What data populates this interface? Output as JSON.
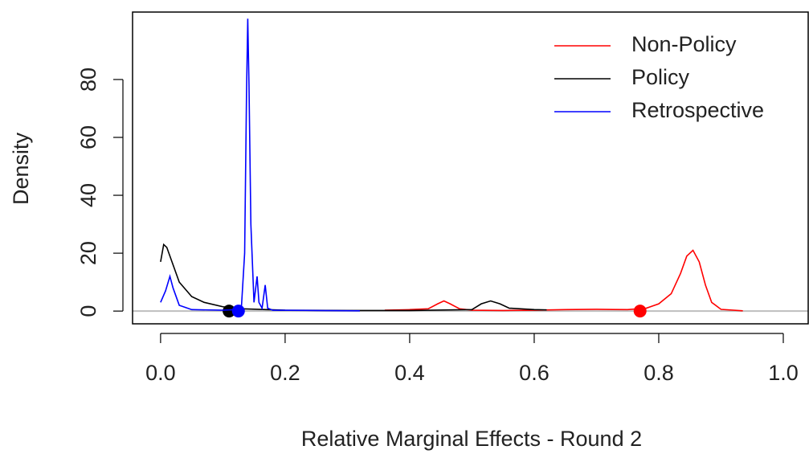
{
  "chart_data": {
    "type": "line",
    "x_label": "Relative Marginal Effects - Round 2",
    "y_label": "Density",
    "xlim": [
      -0.045,
      1.04
    ],
    "ylim": [
      -4.4,
      103.3
    ],
    "xticks": [
      {
        "value": 0,
        "label": "0.0"
      },
      0.2,
      0.4,
      0.6,
      0.8,
      {
        "value": 1,
        "label": "1.0"
      }
    ],
    "yticks": [
      0,
      20,
      40,
      60,
      80
    ],
    "legend_position": "topright",
    "series": [
      {
        "name": "Non-Policy",
        "color": "#ff0000",
        "marker_x": 0.77,
        "x": [
          0.36,
          0.4,
          0.43,
          0.445,
          0.455,
          0.465,
          0.48,
          0.5,
          0.55,
          0.6,
          0.65,
          0.7,
          0.75,
          0.78,
          0.8,
          0.82,
          0.835,
          0.845,
          0.855,
          0.865,
          0.875,
          0.885,
          0.9,
          0.935
        ],
        "values": [
          0.3,
          0.5,
          0.8,
          2.5,
          3.5,
          2.5,
          0.8,
          0.3,
          0.2,
          0.3,
          0.5,
          0.6,
          0.5,
          1,
          2.5,
          6,
          13,
          19,
          21,
          17,
          9,
          3,
          0.6,
          0.1
        ]
      },
      {
        "name": "Policy",
        "color": "#000000",
        "marker_x": 0.11,
        "x": [
          0,
          0.005,
          0.01,
          0.02,
          0.03,
          0.05,
          0.07,
          0.1,
          0.13,
          0.2,
          0.3,
          0.4,
          0.5,
          0.515,
          0.53,
          0.545,
          0.56,
          0.6,
          0.62
        ],
        "values": [
          17,
          23,
          22,
          16,
          10,
          5,
          3,
          1.5,
          0.8,
          0.3,
          0.2,
          0.2,
          0.5,
          2.5,
          3.5,
          2.5,
          1,
          0.5,
          0.4
        ]
      },
      {
        "name": "Retrospective",
        "color": "#0000ff",
        "marker_x": 0.125,
        "x": [
          0,
          0.008,
          0.015,
          0.02,
          0.03,
          0.05,
          0.1,
          0.12,
          0.13,
          0.135,
          0.138,
          0.14,
          0.142,
          0.145,
          0.15,
          0.155,
          0.158,
          0.163,
          0.168,
          0.172,
          0.18,
          0.25,
          0.32
        ],
        "values": [
          3,
          7,
          12,
          8,
          2,
          0.5,
          0.3,
          0.5,
          2,
          20,
          75,
          101,
          78,
          30,
          3,
          12,
          3,
          1,
          9,
          1,
          0.3,
          0.2,
          0.1
        ]
      }
    ]
  }
}
